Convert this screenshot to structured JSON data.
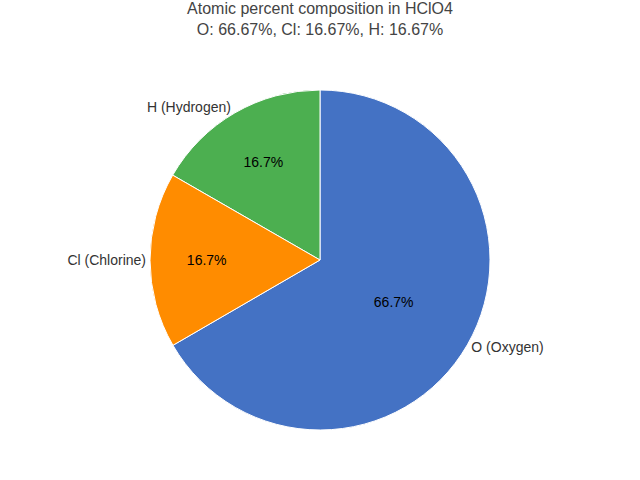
{
  "chart_data": {
    "type": "pie",
    "title": "Atomic percent composition in HClO4",
    "subtitle": "O: 66.67%, Cl: 16.67%, H: 16.67%",
    "categories": [
      "O (Oxygen)",
      "H (Hydrogen)",
      "Cl (Chlorine)"
    ],
    "values": [
      66.7,
      16.7,
      16.7
    ],
    "value_labels": [
      "66.7%",
      "16.7%",
      "16.7%"
    ],
    "colors": [
      "#4472c4",
      "#4caf50",
      "#ff8c00"
    ],
    "data_labels": true
  }
}
